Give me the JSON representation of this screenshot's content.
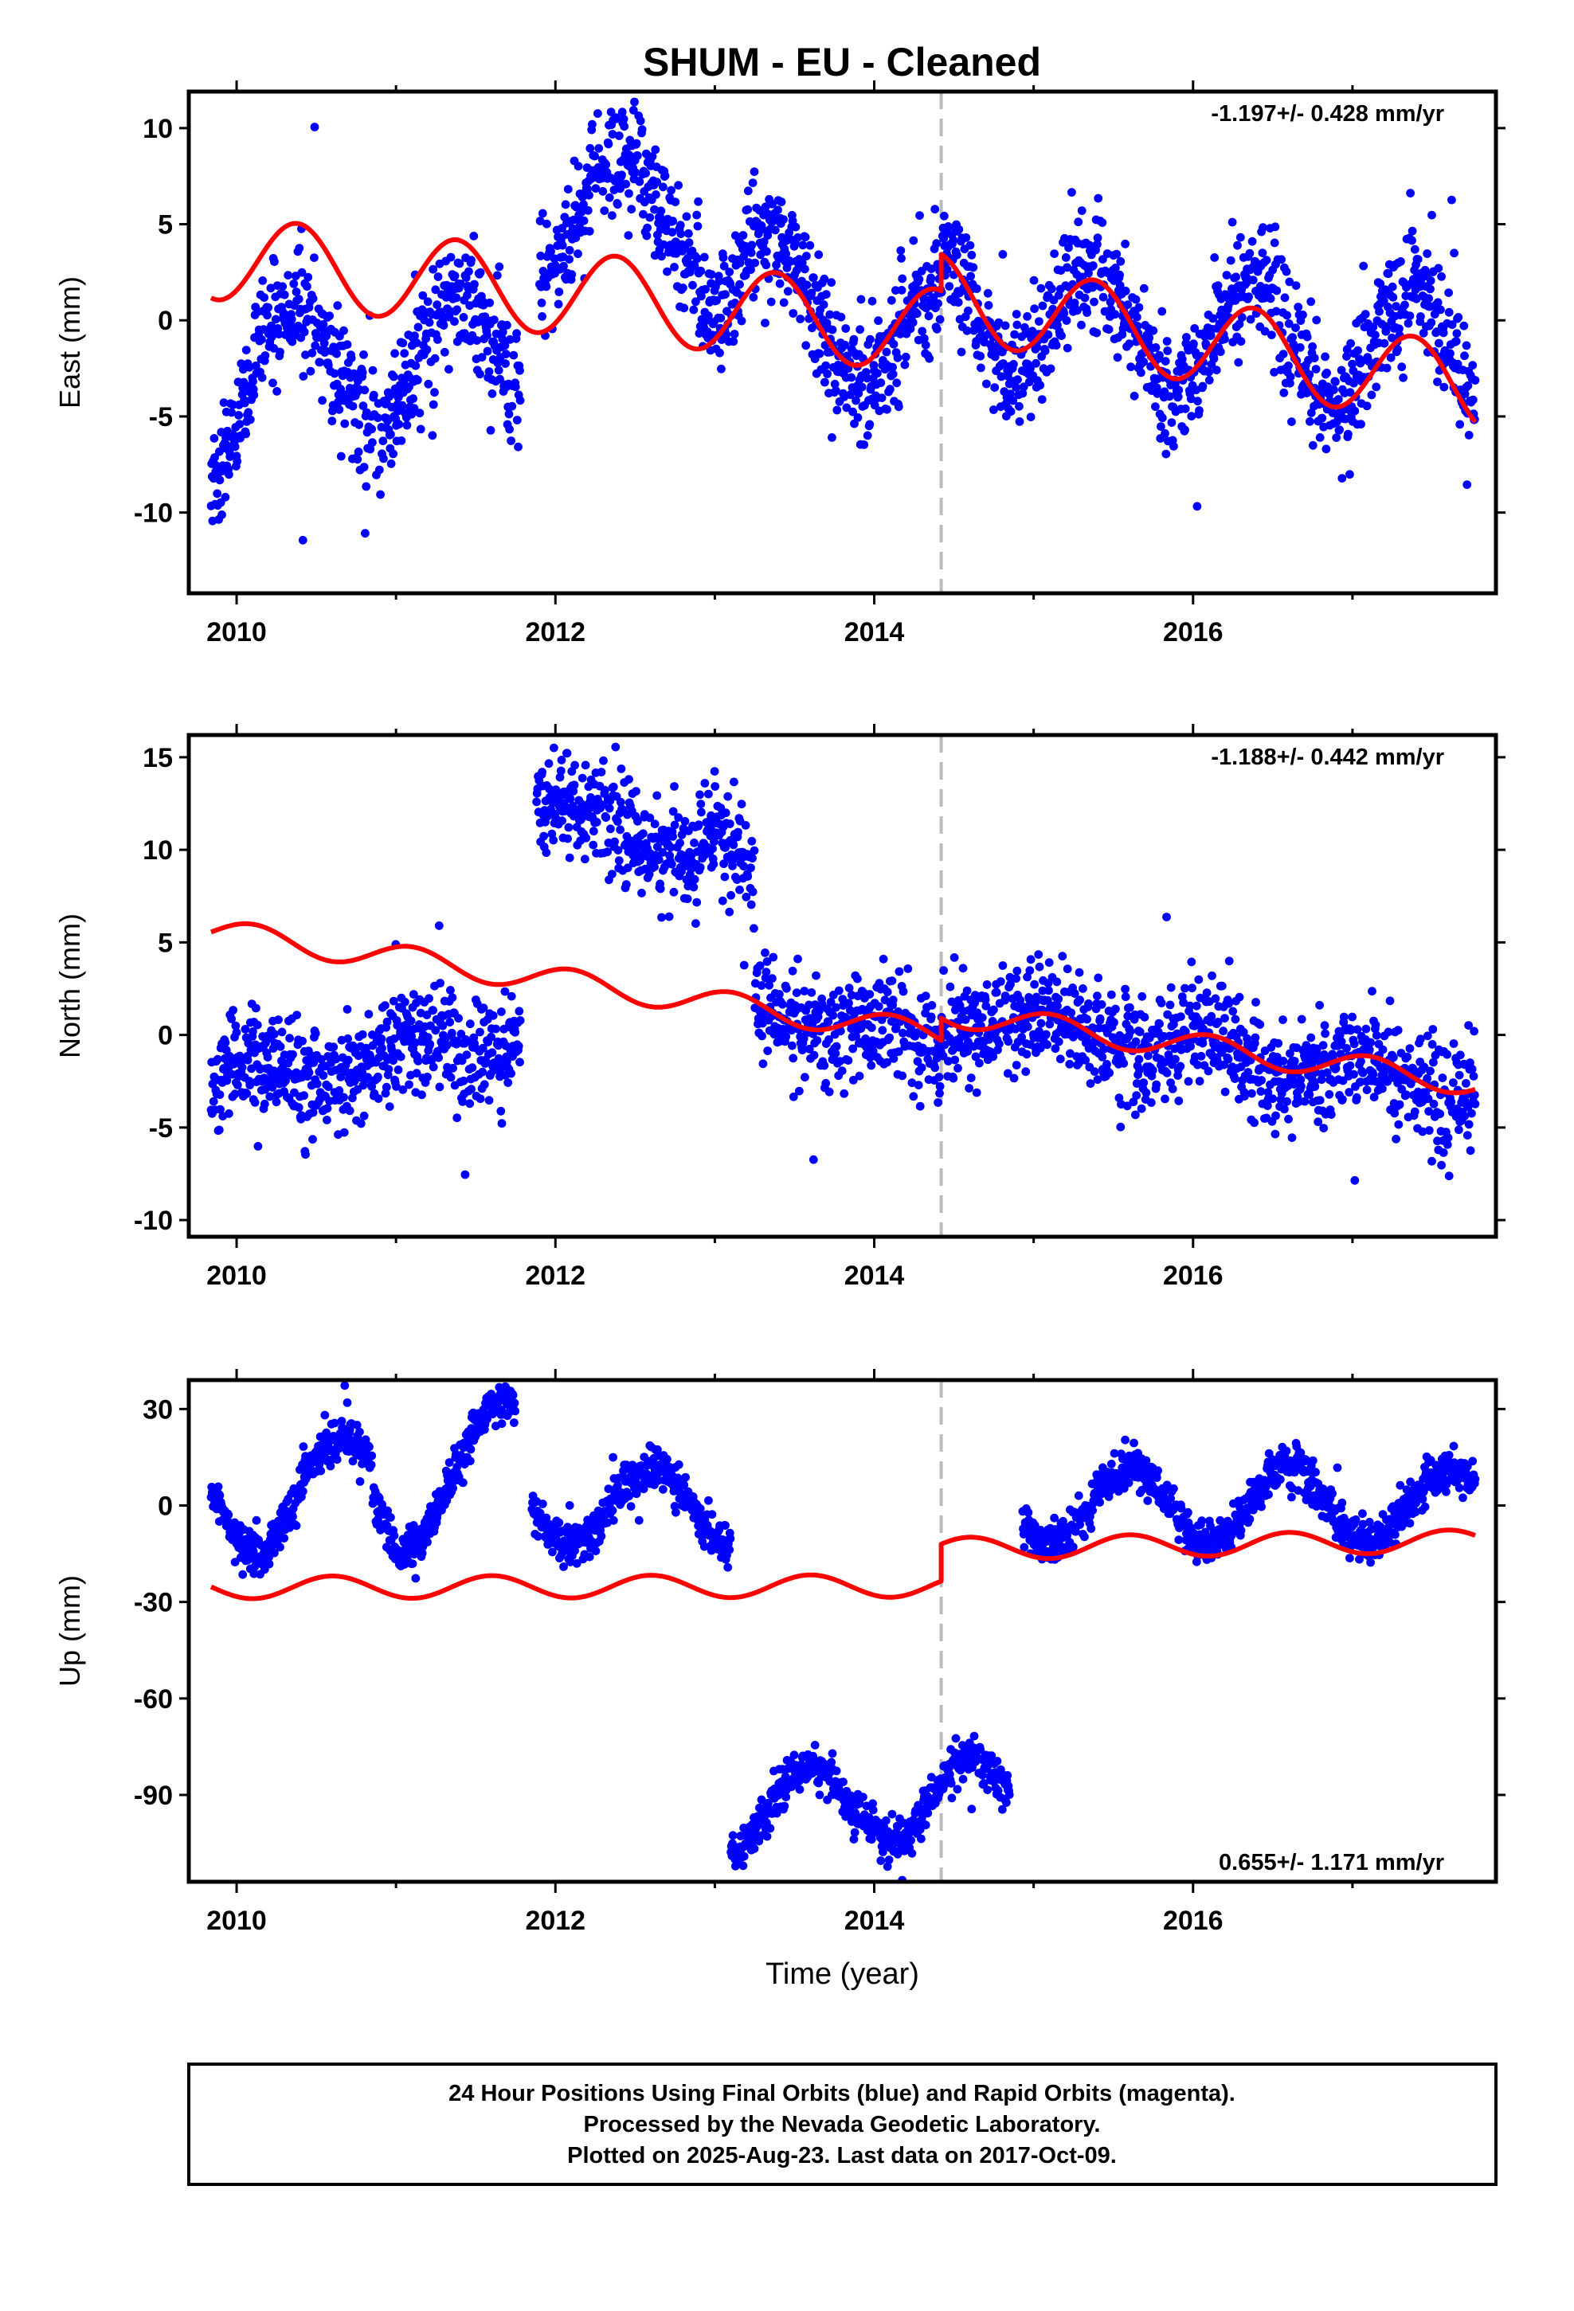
{
  "title": "SHUM  - EU - Cleaned",
  "colors": {
    "points": "#0000ff",
    "model": "#ff0000",
    "event_line": "#bbbbbb",
    "frame": "#000000"
  },
  "footer": {
    "line1": "24 Hour Positions Using Final Orbits (blue) and Rapid Orbits (magenta).",
    "line2": "Processed by the Nevada Geodetic Laboratory.",
    "line3": "Plotted on 2025-Aug-23. Last data on 2017-Oct-09."
  },
  "chart_data": [
    {
      "type": "scatter",
      "component": "East",
      "ylabel": "East (mm)",
      "xlim": [
        2009.7,
        2017.9
      ],
      "ylim": [
        -14.2,
        11.9
      ],
      "xticks": [
        "2010",
        "2012",
        "2014",
        "2016"
      ],
      "yticks": [
        "10",
        "5",
        "0",
        "-5",
        "-10"
      ],
      "rate_label": "-1.197+/- 0.428 mm/yr",
      "rate_position": "top-right",
      "event_line_x": 2014.42,
      "data_range": [
        2009.84,
        2017.77
      ],
      "gaps": [
        [
          2011.78,
          2011.9
        ]
      ],
      "scatter_sigma": 1.5,
      "observed_segments": [
        {
          "x0": 2009.84,
          "x1": 2010.2,
          "y0": -5.0,
          "y1": -1.5
        },
        {
          "x0": 2010.2,
          "x1": 2011.78,
          "y0": -2.5,
          "y1": -1.5
        },
        {
          "x0": 2011.9,
          "x1": 2012.9,
          "y0": 5.0,
          "y1": 6.5
        },
        {
          "x0": 2012.9,
          "x1": 2014.42,
          "y0": 3.0,
          "y1": -2.0
        },
        {
          "x0": 2014.42,
          "x1": 2017.77,
          "y0": 0.5,
          "y1": -1.8
        }
      ],
      "observed_seasonal_amplitude": 3.2,
      "series": [
        {
          "kind": "observed",
          "marker": "dot",
          "color": "#0000ff"
        },
        {
          "kind": "model",
          "color": "#ff0000",
          "seasonal_amplitude": 2.2,
          "seasonal_phase_year": 2010.38,
          "segments": [
            {
              "x0": 2009.84,
              "x1": 2014.42,
              "y0": 3.3,
              "y1": -0.6
            },
            {
              "x0": 2014.42,
              "x1": 2017.77,
              "y0": 1.3,
              "y1": -3.6
            }
          ]
        }
      ]
    },
    {
      "type": "scatter",
      "component": "North",
      "ylabel": "North (mm)",
      "xlim": [
        2009.7,
        2017.9
      ],
      "ylim": [
        -10.9,
        16.2
      ],
      "xticks": [
        "2010",
        "2012",
        "2014",
        "2016"
      ],
      "yticks": [
        "15",
        "10",
        "5",
        "0",
        "-5",
        "-10"
      ],
      "rate_label": "-1.188+/- 0.442 mm/yr",
      "rate_position": "top-right",
      "event_line_x": 2014.42,
      "data_range": [
        2009.84,
        2017.77
      ],
      "gaps": [
        [
          2011.78,
          2011.88
        ]
      ],
      "scatter_sigma": 1.4,
      "observed_segments": [
        {
          "x0": 2009.84,
          "x1": 2011.78,
          "y0": -2.5,
          "y1": 0.0
        },
        {
          "x0": 2011.88,
          "x1": 2013.25,
          "y0": 12.5,
          "y1": 9.0
        },
        {
          "x0": 2013.25,
          "x1": 2014.42,
          "y0": 1.8,
          "y1": -1.0
        },
        {
          "x0": 2014.42,
          "x1": 2017.77,
          "y0": 1.2,
          "y1": -2.8
        }
      ],
      "observed_seasonal_amplitude": 0.8,
      "series": [
        {
          "kind": "observed",
          "marker": "dot",
          "color": "#0000ff"
        },
        {
          "kind": "model",
          "color": "#ff0000",
          "seasonal_amplitude": 0.7,
          "seasonal_phase_year": 2010.1,
          "segments": [
            {
              "x0": 2009.84,
              "x1": 2014.42,
              "y0": 5.6,
              "y1": 0.0
            },
            {
              "x0": 2014.42,
              "x1": 2017.77,
              "y0": 1.2,
              "y1": -2.6
            }
          ]
        }
      ]
    },
    {
      "type": "scatter",
      "component": "Up",
      "ylabel": "Up (mm)",
      "xlabel": "Time (year)",
      "xlim": [
        2009.7,
        2017.9
      ],
      "ylim": [
        -117,
        39
      ],
      "xticks": [
        "2010",
        "2012",
        "2014",
        "2016"
      ],
      "yticks": [
        "30",
        "0",
        "-30",
        "-60",
        "-90"
      ],
      "rate_label": "0.655+/- 1.171 mm/yr",
      "rate_position": "bottom-right",
      "event_line_x": 2014.42,
      "data_range": [
        2009.84,
        2017.77
      ],
      "gaps": [
        [
          2011.75,
          2011.85
        ],
        [
          2014.85,
          2014.93
        ]
      ],
      "scatter_sigma": 3.2,
      "observed_segments": [
        {
          "x0": 2009.84,
          "x1": 2010.15,
          "y0": 5.0,
          "y1": -5.0
        },
        {
          "x0": 2010.15,
          "x1": 2010.85,
          "y0": -5.0,
          "y1": 15.0
        },
        {
          "x0": 2010.85,
          "x1": 2011.0,
          "y0": 5.0,
          "y1": -5.0
        },
        {
          "x0": 2011.0,
          "x1": 2011.75,
          "y0": -5.0,
          "y1": 25.0
        },
        {
          "x0": 2011.85,
          "x1": 2013.1,
          "y0": 0.0,
          "y1": 0.0
        },
        {
          "x0": 2013.1,
          "x1": 2014.85,
          "y0": -95.0,
          "y1": -90.0
        },
        {
          "x0": 2014.93,
          "x1": 2017.77,
          "y0": 0.0,
          "y1": 0.0
        }
      ],
      "observed_seasonal_amplitude": 12.0,
      "series": [
        {
          "kind": "observed",
          "marker": "dot",
          "color": "#0000ff"
        },
        {
          "kind": "model",
          "color": "#ff0000",
          "seasonal_amplitude": 3.5,
          "seasonal_phase_year": 2010.6,
          "segments": [
            {
              "x0": 2009.84,
              "x1": 2014.42,
              "y0": -25.5,
              "y1": -25.0
            },
            {
              "x0": 2014.42,
              "x1": 2017.77,
              "y0": -13.5,
              "y1": -11.0
            }
          ]
        }
      ]
    }
  ]
}
